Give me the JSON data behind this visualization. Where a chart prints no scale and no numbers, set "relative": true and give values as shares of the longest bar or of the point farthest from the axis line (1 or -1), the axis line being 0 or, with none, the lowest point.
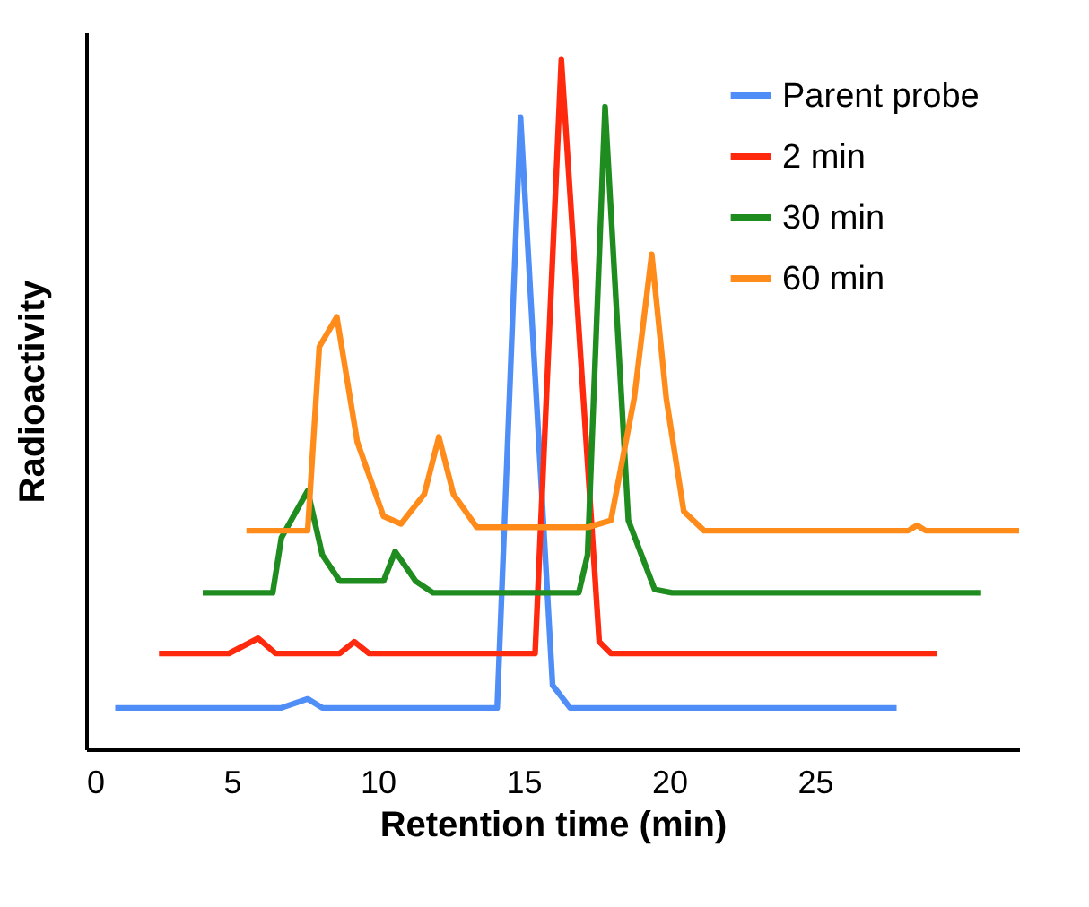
{
  "chart_data": {
    "type": "line",
    "xlabel": "Retention time (min)",
    "ylabel": "Radioactivity",
    "relative": true,
    "xlim": [
      0,
      32
    ],
    "xticks": [
      0,
      5,
      10,
      15,
      20,
      25
    ],
    "legend": "top right",
    "grid": false,
    "series": [
      {
        "name": "Parent probe",
        "color": "#4f8ef7",
        "x": [
          1.0,
          6.7,
          7.6,
          8.1,
          13.8,
          14.1,
          14.9,
          16.0,
          16.6,
          27.8
        ],
        "values": [
          0.06,
          0.06,
          0.073,
          0.06,
          0.06,
          0.06,
          0.917,
          0.093,
          0.06,
          0.06
        ]
      },
      {
        "name": "2 min",
        "color": "#ff2a0e",
        "x": [
          2.5,
          4.9,
          5.9,
          6.5,
          8.7,
          9.2,
          9.7,
          15.4,
          16.3,
          17.6,
          18.0,
          29.2
        ],
        "values": [
          0.139,
          0.139,
          0.161,
          0.139,
          0.139,
          0.156,
          0.139,
          0.139,
          1.0,
          0.156,
          0.139,
          0.139
        ]
      },
      {
        "name": "30 min",
        "color": "#1e8c1e",
        "x": [
          4.0,
          6.4,
          6.7,
          7.6,
          8.1,
          8.7,
          10.2,
          10.6,
          11.3,
          11.9,
          16.9,
          17.2,
          17.8,
          18.6,
          19.5,
          20.1,
          30.7
        ],
        "values": [
          0.227,
          0.227,
          0.307,
          0.375,
          0.282,
          0.244,
          0.244,
          0.287,
          0.244,
          0.227,
          0.227,
          0.282,
          0.932,
          0.332,
          0.232,
          0.227,
          0.227
        ]
      },
      {
        "name": "60 min",
        "color": "#ff8c1a",
        "x": [
          5.5,
          7.6,
          8.0,
          8.6,
          9.3,
          10.2,
          10.8,
          11.6,
          12.1,
          12.6,
          13.4,
          17.2,
          18.0,
          18.8,
          19.4,
          19.9,
          20.5,
          21.2,
          28.2,
          28.5,
          28.8,
          32.0
        ],
        "values": [
          0.317,
          0.317,
          0.584,
          0.627,
          0.446,
          0.338,
          0.327,
          0.37,
          0.453,
          0.37,
          0.322,
          0.322,
          0.332,
          0.509,
          0.718,
          0.509,
          0.345,
          0.317,
          0.317,
          0.325,
          0.317,
          0.317
        ]
      }
    ]
  }
}
